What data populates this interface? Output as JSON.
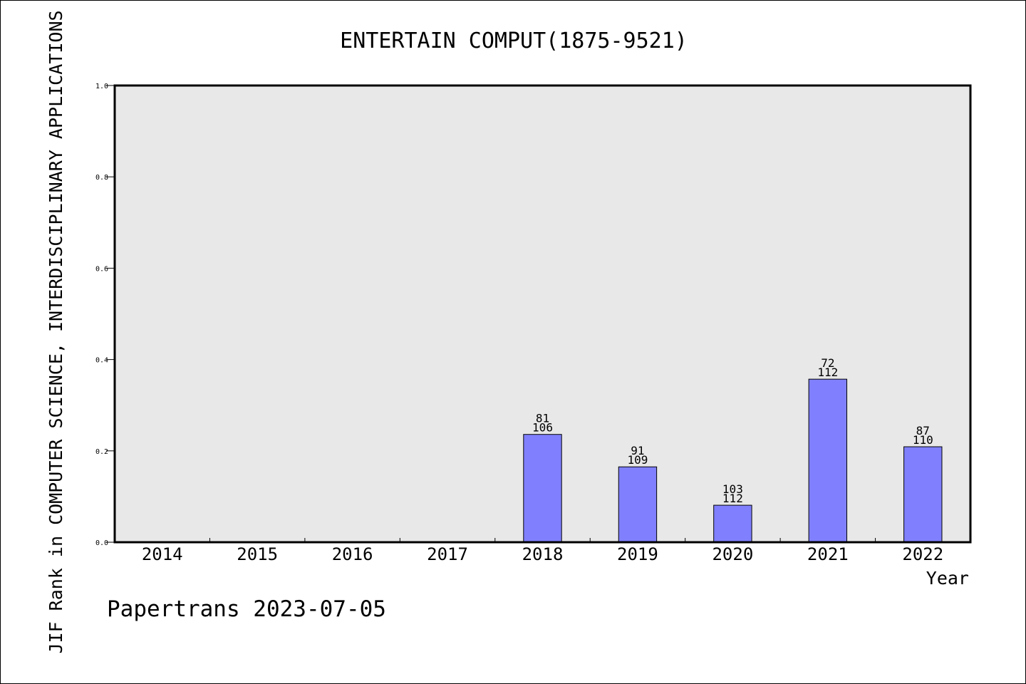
{
  "chart_data": {
    "type": "bar",
    "title": "ENTERTAIN COMPUT(1875-9521)",
    "xlabel": "Year",
    "ylabel": "JIF Rank in COMPUTER SCIENCE, INTERDISCIPLINARY APPLICATIONS",
    "ylim": [
      0,
      1.0
    ],
    "yticks": [
      "0.0",
      "0.2",
      "0.4",
      "0.6",
      "0.8",
      "1.0"
    ],
    "grid": false,
    "categories": [
      "2014",
      "2015",
      "2016",
      "2017",
      "2018",
      "2019",
      "2020",
      "2021",
      "2022"
    ],
    "values": [
      null,
      null,
      null,
      null,
      0.236,
      0.165,
      0.081,
      0.357,
      0.209
    ],
    "ranks": [
      null,
      null,
      null,
      null,
      "81",
      "91",
      "103",
      "72",
      "87"
    ],
    "totals": [
      null,
      null,
      null,
      null,
      "106",
      "109",
      "112",
      "112",
      "110"
    ],
    "bar_color": "#8080ff",
    "plot_background": "#e8e8e8"
  },
  "footer": "Papertrans 2023-07-05"
}
